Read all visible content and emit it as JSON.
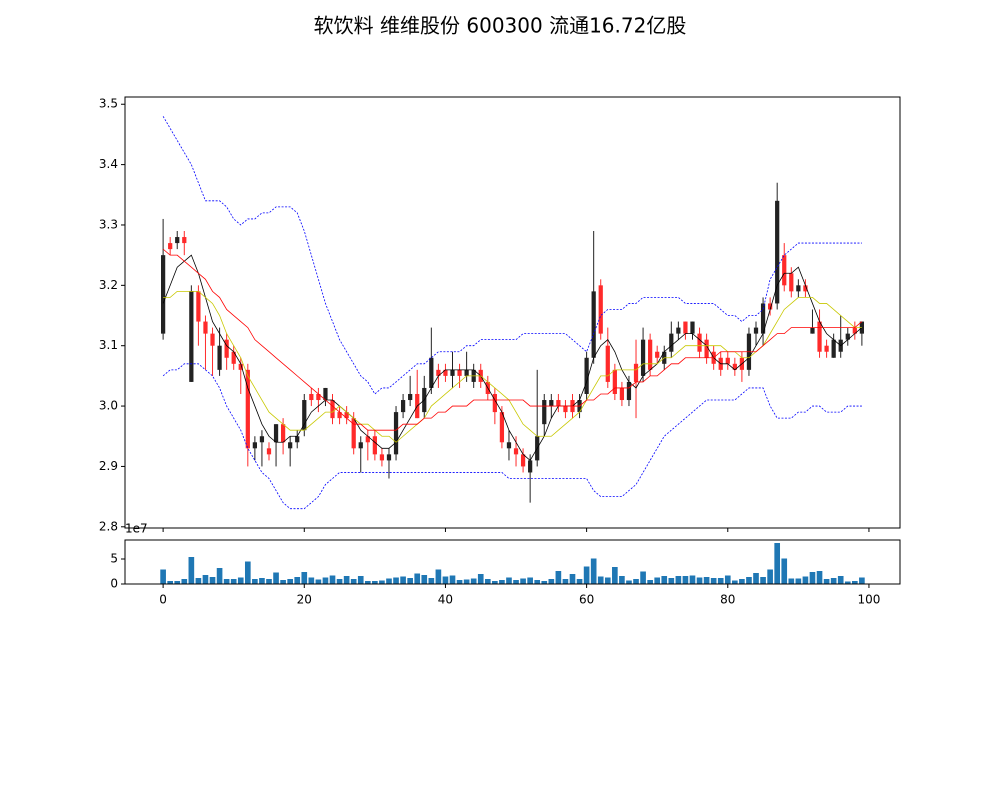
{
  "chart_data": [
    {
      "type": "candlestick",
      "title": "软饮料 维维股份 600300 流通16.72亿股",
      "open": [
        3.12,
        3.27,
        3.27,
        3.28,
        3.04,
        3.19,
        3.14,
        3.12,
        3.06,
        3.11,
        3.09,
        3.07,
        3.06,
        2.93,
        2.94,
        2.93,
        2.94,
        2.97,
        2.93,
        2.94,
        2.96,
        3.02,
        3.02,
        3.01,
        3.01,
        2.99,
        2.99,
        2.98,
        2.93,
        2.95,
        2.95,
        2.92,
        2.91,
        2.92,
        2.99,
        3.01,
        3.02,
        2.99,
        3.03,
        3.06,
        3.06,
        3.05,
        3.06,
        3.05,
        3.04,
        3.06,
        3.04,
        3.02,
        2.99,
        2.93,
        2.93,
        2.92,
        2.89,
        2.91,
        2.97,
        3.0,
        3.01,
        3.0,
        3.01,
        2.99,
        3.02,
        3.08,
        3.2,
        3.1,
        3.06,
        3.03,
        3.01,
        3.07,
        3.05,
        3.11,
        3.09,
        3.07,
        3.09,
        3.12,
        3.14,
        3.12,
        3.12,
        3.11,
        3.09,
        3.08,
        3.08,
        3.07,
        3.08,
        3.06,
        3.12,
        3.12,
        3.17,
        3.17,
        3.25,
        3.22,
        3.19,
        3.2,
        3.12,
        3.14,
        3.1,
        3.08,
        3.09,
        3.11,
        3.13,
        3.12
      ],
      "high": [
        3.31,
        3.28,
        3.29,
        3.29,
        3.2,
        3.2,
        3.15,
        3.13,
        3.13,
        3.12,
        3.1,
        3.08,
        3.07,
        2.95,
        2.96,
        2.94,
        2.97,
        2.98,
        2.95,
        2.96,
        3.02,
        3.03,
        3.03,
        3.03,
        3.02,
        3.0,
        3.0,
        2.99,
        2.95,
        2.96,
        2.96,
        2.93,
        2.93,
        3.0,
        3.02,
        3.05,
        3.06,
        3.05,
        3.13,
        3.07,
        3.07,
        3.09,
        3.07,
        3.09,
        3.07,
        3.07,
        3.05,
        3.03,
        3.0,
        2.96,
        2.95,
        2.93,
        2.92,
        3.06,
        3.02,
        3.02,
        3.02,
        3.01,
        3.02,
        3.02,
        3.09,
        3.29,
        3.21,
        3.13,
        3.07,
        3.04,
        3.05,
        3.11,
        3.13,
        3.12,
        3.1,
        3.1,
        3.14,
        3.14,
        3.14,
        3.14,
        3.13,
        3.12,
        3.1,
        3.09,
        3.09,
        3.08,
        3.09,
        3.13,
        3.14,
        3.18,
        3.18,
        3.37,
        3.27,
        3.23,
        3.21,
        3.21,
        3.16,
        3.16,
        3.11,
        3.12,
        3.15,
        3.13,
        3.14,
        3.14
      ],
      "low": [
        3.11,
        3.25,
        3.26,
        3.25,
        3.04,
        3.1,
        3.06,
        3.05,
        3.05,
        3.06,
        3.06,
        3.02,
        2.9,
        2.91,
        2.9,
        2.91,
        2.9,
        2.92,
        2.9,
        2.93,
        2.95,
        3.0,
        2.99,
        3.0,
        2.97,
        2.97,
        2.97,
        2.92,
        2.89,
        2.91,
        2.91,
        2.9,
        2.88,
        2.91,
        2.98,
        3.0,
        2.98,
        2.98,
        3.02,
        3.03,
        3.04,
        3.03,
        3.03,
        3.04,
        3.03,
        3.03,
        3.01,
        2.97,
        2.93,
        2.91,
        2.9,
        2.89,
        2.84,
        2.9,
        2.95,
        2.98,
        2.99,
        2.98,
        2.98,
        2.98,
        3.01,
        3.07,
        3.11,
        3.03,
        3.01,
        3.0,
        3.0,
        2.98,
        3.04,
        3.05,
        3.07,
        3.06,
        3.08,
        3.11,
        3.11,
        3.11,
        3.08,
        3.07,
        3.06,
        3.05,
        3.06,
        3.05,
        3.04,
        3.05,
        3.1,
        3.1,
        3.15,
        3.16,
        3.19,
        3.18,
        3.18,
        3.18,
        3.12,
        3.08,
        3.08,
        3.08,
        3.08,
        3.1,
        3.11,
        3.1
      ],
      "close": [
        3.25,
        3.26,
        3.28,
        3.27,
        3.19,
        3.14,
        3.12,
        3.1,
        3.1,
        3.08,
        3.07,
        3.06,
        2.93,
        2.94,
        2.95,
        2.92,
        2.97,
        2.94,
        2.94,
        2.95,
        3.01,
        3.01,
        3.01,
        3.03,
        2.98,
        2.98,
        2.98,
        2.93,
        2.94,
        2.94,
        2.92,
        2.91,
        2.92,
        2.99,
        3.01,
        3.02,
        2.98,
        3.03,
        3.08,
        3.05,
        3.05,
        3.06,
        3.05,
        3.06,
        3.06,
        3.04,
        3.02,
        2.99,
        2.94,
        2.94,
        2.92,
        2.9,
        2.91,
        2.95,
        3.01,
        3.01,
        3.0,
        2.99,
        2.99,
        3.01,
        3.08,
        3.19,
        3.12,
        3.04,
        3.02,
        3.01,
        3.04,
        3.04,
        3.11,
        3.06,
        3.08,
        3.09,
        3.12,
        3.13,
        3.12,
        3.14,
        3.09,
        3.08,
        3.07,
        3.06,
        3.07,
        3.06,
        3.06,
        3.12,
        3.13,
        3.17,
        3.16,
        3.34,
        3.2,
        3.19,
        3.2,
        3.19,
        3.13,
        3.09,
        3.09,
        3.11,
        3.11,
        3.12,
        3.12,
        3.14
      ],
      "up_color": "#222222",
      "down_color": "#ff2a2a",
      "lines": [
        {
          "color": "#000000",
          "dashed": false,
          "values": [
            3.17,
            3.2,
            3.23,
            3.24,
            3.25,
            3.22,
            3.18,
            3.14,
            3.12,
            3.1,
            3.09,
            3.07,
            3.03,
            3.0,
            2.97,
            2.95,
            2.94,
            2.94,
            2.95,
            2.95,
            2.97,
            2.99,
            3.0,
            3.01,
            3.01,
            3.0,
            2.99,
            2.98,
            2.96,
            2.95,
            2.94,
            2.93,
            2.93,
            2.94,
            2.96,
            2.98,
            3.0,
            3.01,
            3.03,
            3.05,
            3.06,
            3.06,
            3.06,
            3.06,
            3.06,
            3.05,
            3.03,
            3.01,
            2.99,
            2.96,
            2.94,
            2.92,
            2.91,
            2.93,
            2.95,
            2.98,
            3.0,
            3.0,
            3.0,
            3.01,
            3.04,
            3.08,
            3.1,
            3.11,
            3.09,
            3.06,
            3.04,
            3.03,
            3.05,
            3.06,
            3.07,
            3.09,
            3.1,
            3.11,
            3.12,
            3.12,
            3.11,
            3.1,
            3.08,
            3.07,
            3.07,
            3.06,
            3.07,
            3.08,
            3.1,
            3.12,
            3.16,
            3.2,
            3.22,
            3.22,
            3.23,
            3.2,
            3.17,
            3.14,
            3.12,
            3.11,
            3.1,
            3.11,
            3.12,
            3.13
          ]
        },
        {
          "color": "#c8c800",
          "dashed": false,
          "values": [
            3.18,
            3.18,
            3.19,
            3.19,
            3.19,
            3.19,
            3.18,
            3.17,
            3.15,
            3.12,
            3.1,
            3.08,
            3.05,
            3.03,
            3.01,
            2.99,
            2.98,
            2.97,
            2.96,
            2.96,
            2.96,
            2.97,
            2.98,
            2.99,
            2.99,
            3.0,
            2.99,
            2.98,
            2.97,
            2.97,
            2.96,
            2.95,
            2.95,
            2.94,
            2.95,
            2.96,
            2.97,
            2.98,
            3.0,
            3.01,
            3.02,
            3.03,
            3.04,
            3.05,
            3.05,
            3.05,
            3.04,
            3.03,
            3.02,
            3.01,
            2.99,
            2.97,
            2.96,
            2.95,
            2.95,
            2.95,
            2.96,
            2.97,
            2.98,
            2.99,
            3.01,
            3.03,
            3.05,
            3.05,
            3.06,
            3.06,
            3.06,
            3.06,
            3.07,
            3.07,
            3.07,
            3.08,
            3.08,
            3.09,
            3.1,
            3.1,
            3.1,
            3.1,
            3.1,
            3.1,
            3.09,
            3.09,
            3.08,
            3.08,
            3.09,
            3.1,
            3.12,
            3.14,
            3.16,
            3.17,
            3.18,
            3.18,
            3.18,
            3.17,
            3.17,
            3.16,
            3.15,
            3.14,
            3.13,
            3.13
          ]
        },
        {
          "color": "#ff0000",
          "dashed": false,
          "values": [
            3.26,
            3.25,
            3.25,
            3.24,
            3.23,
            3.22,
            3.21,
            3.19,
            3.18,
            3.16,
            3.15,
            3.14,
            3.13,
            3.11,
            3.1,
            3.09,
            3.08,
            3.07,
            3.06,
            3.05,
            3.04,
            3.03,
            3.02,
            3.01,
            3.0,
            2.99,
            2.98,
            2.97,
            2.97,
            2.96,
            2.96,
            2.96,
            2.96,
            2.96,
            2.97,
            2.97,
            2.97,
            2.98,
            2.98,
            2.99,
            2.99,
            3.0,
            3.0,
            3.0,
            3.01,
            3.01,
            3.01,
            3.01,
            3.01,
            3.01,
            3.01,
            3.01,
            3.0,
            3.0,
            3.0,
            3.0,
            3.0,
            3.0,
            3.0,
            3.0,
            3.01,
            3.01,
            3.02,
            3.02,
            3.03,
            3.03,
            3.03,
            3.04,
            3.04,
            3.05,
            3.05,
            3.06,
            3.07,
            3.07,
            3.08,
            3.08,
            3.08,
            3.08,
            3.08,
            3.09,
            3.09,
            3.09,
            3.09,
            3.09,
            3.09,
            3.1,
            3.11,
            3.12,
            3.12,
            3.13,
            3.13,
            3.13,
            3.13,
            3.13,
            3.13,
            3.13,
            3.13,
            3.13,
            3.13,
            3.14
          ]
        },
        {
          "color": "#0000ff",
          "dashed": true,
          "values": [
            3.48,
            3.46,
            3.44,
            3.42,
            3.4,
            3.37,
            3.34,
            3.34,
            3.34,
            3.33,
            3.31,
            3.3,
            3.31,
            3.31,
            3.32,
            3.32,
            3.33,
            3.33,
            3.33,
            3.32,
            3.29,
            3.25,
            3.21,
            3.17,
            3.14,
            3.11,
            3.09,
            3.07,
            3.05,
            3.04,
            3.02,
            3.03,
            3.03,
            3.04,
            3.05,
            3.06,
            3.07,
            3.07,
            3.08,
            3.09,
            3.09,
            3.09,
            3.09,
            3.1,
            3.1,
            3.11,
            3.11,
            3.11,
            3.11,
            3.11,
            3.11,
            3.12,
            3.12,
            3.12,
            3.12,
            3.12,
            3.12,
            3.12,
            3.11,
            3.1,
            3.09,
            3.12,
            3.15,
            3.16,
            3.16,
            3.16,
            3.17,
            3.17,
            3.18,
            3.18,
            3.18,
            3.18,
            3.18,
            3.18,
            3.17,
            3.17,
            3.17,
            3.17,
            3.17,
            3.16,
            3.15,
            3.15,
            3.14,
            3.15,
            3.15,
            3.16,
            3.21,
            3.23,
            3.25,
            3.26,
            3.27,
            3.27,
            3.27,
            3.27,
            3.27,
            3.27,
            3.27,
            3.27,
            3.27,
            3.27
          ]
        },
        {
          "color": "#0000ff",
          "dashed": true,
          "values": [
            3.05,
            3.06,
            3.06,
            3.07,
            3.07,
            3.07,
            3.06,
            3.05,
            3.03,
            3.0,
            2.98,
            2.96,
            2.93,
            2.91,
            2.89,
            2.88,
            2.86,
            2.84,
            2.83,
            2.83,
            2.83,
            2.84,
            2.85,
            2.87,
            2.88,
            2.89,
            2.89,
            2.89,
            2.89,
            2.89,
            2.89,
            2.89,
            2.89,
            2.89,
            2.89,
            2.89,
            2.89,
            2.89,
            2.89,
            2.89,
            2.89,
            2.89,
            2.89,
            2.89,
            2.89,
            2.89,
            2.89,
            2.89,
            2.89,
            2.88,
            2.88,
            2.88,
            2.88,
            2.88,
            2.88,
            2.88,
            2.88,
            2.88,
            2.88,
            2.88,
            2.88,
            2.86,
            2.85,
            2.85,
            2.85,
            2.85,
            2.86,
            2.87,
            2.89,
            2.91,
            2.93,
            2.95,
            2.96,
            2.97,
            2.98,
            2.99,
            3.0,
            3.01,
            3.01,
            3.01,
            3.01,
            3.01,
            3.02,
            3.03,
            3.03,
            3.03,
            3.0,
            2.98,
            2.98,
            2.98,
            2.99,
            2.99,
            3.0,
            3.0,
            2.99,
            2.99,
            2.99,
            3.0,
            3.0,
            3.0
          ]
        }
      ],
      "xlim": [
        -5.4,
        104.4
      ],
      "xticks": [
        0,
        20,
        40,
        60,
        80,
        100
      ],
      "ylim": [
        2.798,
        3.512
      ],
      "yticks": [
        2.8,
        2.9,
        {
          "value": 3,
          "label": "3.0"
        },
        3.1,
        3.2,
        3.3,
        3.4,
        3.5
      ]
    },
    {
      "type": "bar",
      "color": "#1f77b4",
      "offset_label": "1e7",
      "values": [
        2.9,
        0.6,
        0.6,
        1.0,
        5.4,
        1.2,
        1.8,
        1.4,
        3.2,
        1.0,
        1.0,
        1.3,
        4.5,
        1.0,
        1.2,
        1.0,
        2.3,
        0.8,
        1.0,
        1.4,
        2.4,
        1.3,
        0.9,
        1.3,
        1.7,
        1.0,
        1.6,
        1.0,
        1.6,
        0.6,
        0.6,
        0.7,
        1.1,
        1.3,
        1.5,
        1.2,
        2.1,
        1.8,
        1.2,
        2.9,
        1.5,
        1.7,
        0.8,
        0.9,
        1.1,
        2.0,
        1.0,
        0.6,
        0.8,
        1.3,
        0.8,
        1.1,
        1.3,
        0.8,
        0.6,
        1.0,
        2.6,
        1.0,
        2.0,
        1.0,
        3.5,
        5.1,
        1.5,
        1.3,
        3.4,
        1.6,
        0.7,
        1.0,
        2.5,
        0.8,
        1.3,
        1.6,
        1.2,
        1.6,
        1.6,
        1.7,
        1.3,
        1.4,
        1.2,
        1.2,
        1.7,
        0.7,
        1.0,
        1.4,
        2.2,
        1.4,
        2.9,
        8.2,
        5.1,
        1.1,
        1.1,
        1.5,
        2.4,
        2.6,
        1.0,
        1.2,
        1.6,
        0.5,
        0.6,
        1.3
      ],
      "xlim": [
        -5.4,
        104.4
      ],
      "xticks": [
        0,
        20,
        40,
        60,
        80,
        100
      ],
      "ylim": [
        0,
        8.8
      ],
      "yticks": [
        0,
        5
      ]
    }
  ]
}
